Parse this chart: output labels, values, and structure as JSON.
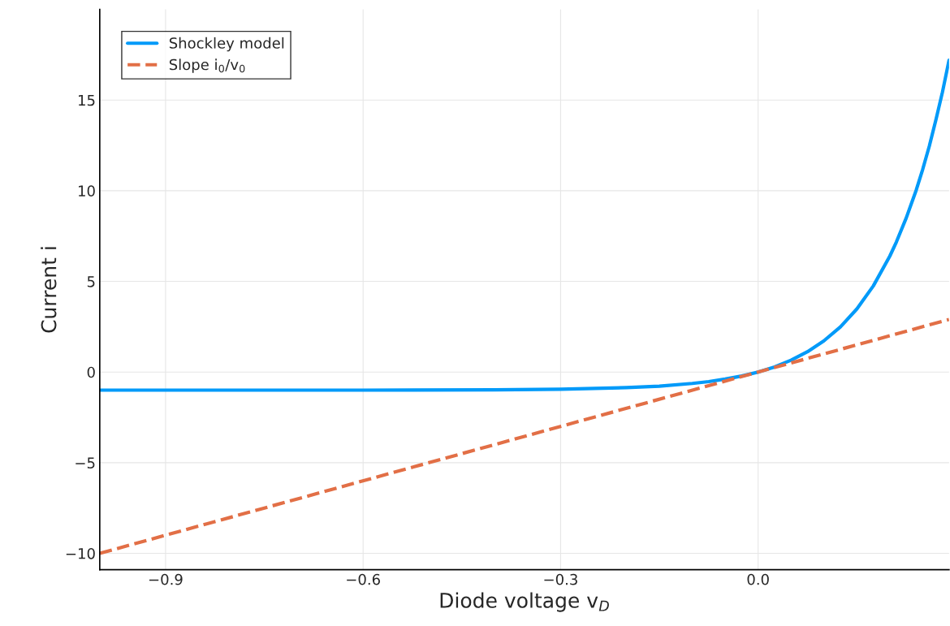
{
  "chart_data": {
    "type": "line",
    "xlabel": "Diode voltage v$_{D}$",
    "ylabel": "Current i",
    "xlim": [
      -1.0,
      0.29
    ],
    "ylim": [
      -10.9,
      20.0
    ],
    "xticks": [
      {
        "value": -0.9,
        "label": "−0.9"
      },
      {
        "value": -0.6,
        "label": "−0.6"
      },
      {
        "value": -0.3,
        "label": "−0.3"
      },
      {
        "value": 0.0,
        "label": "0.0"
      }
    ],
    "yticks": [
      {
        "value": -10,
        "label": "−10"
      },
      {
        "value": -5,
        "label": "−5"
      },
      0,
      5,
      10,
      15
    ],
    "grid": true,
    "legend": "top left",
    "marker": "none",
    "series": [
      {
        "name": "Shockley model",
        "color": "#009af9",
        "line_style": "solid",
        "x": [
          -1.0,
          -0.6,
          -0.4,
          -0.3,
          -0.2,
          -0.15,
          -0.1,
          -0.075,
          -0.05,
          -0.025,
          0.0,
          0.025,
          0.05,
          0.075,
          0.1,
          0.125,
          0.15,
          0.175,
          0.2,
          0.21,
          0.225,
          0.24,
          0.25,
          0.26,
          0.27,
          0.28,
          0.29
        ],
        "values": [
          -1.0,
          -1.0,
          -0.98,
          -0.95,
          -0.86,
          -0.78,
          -0.63,
          -0.53,
          -0.39,
          -0.22,
          0.0,
          0.28,
          0.65,
          1.12,
          1.72,
          2.49,
          3.48,
          4.75,
          6.39,
          7.17,
          8.5,
          10.02,
          11.18,
          12.46,
          13.9,
          15.44,
          17.2
        ]
      },
      {
        "name": "Slope i$_{0}$/v$_{0}$",
        "color": "#e26f46",
        "line_style": "dashed",
        "x": [
          -1.0,
          0.29
        ],
        "values": [
          -10.0,
          2.9
        ]
      }
    ]
  }
}
